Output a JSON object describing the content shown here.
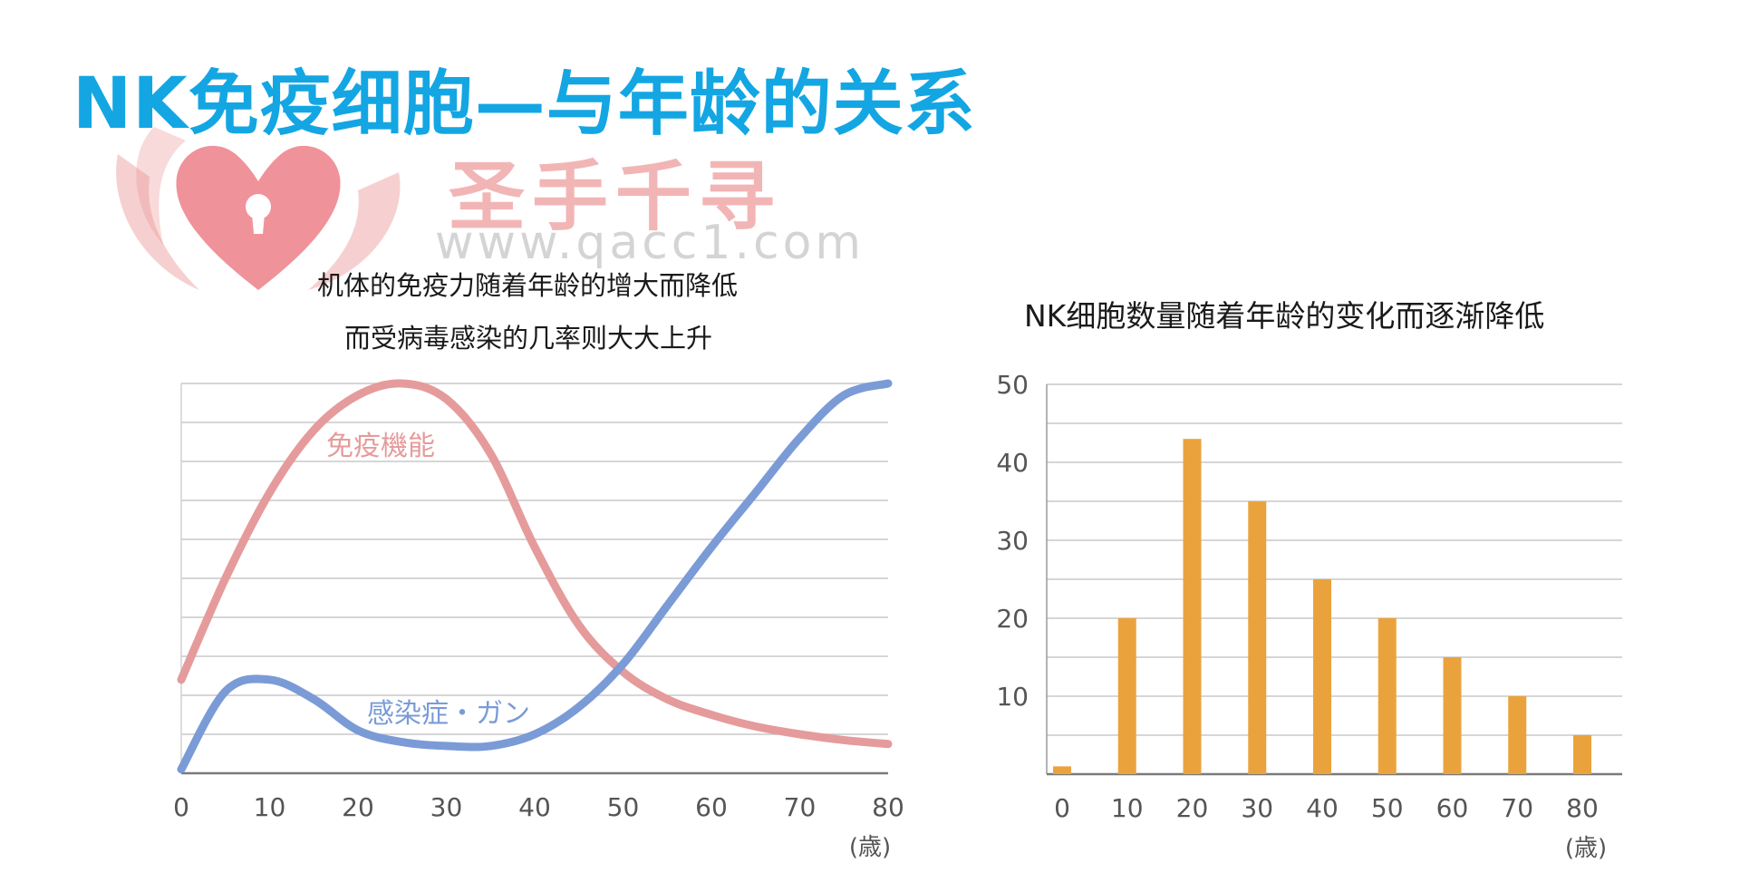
{
  "header": {
    "title": "NK免疫细胞—与年龄的关系"
  },
  "watermark": {
    "brand": "圣手千寻",
    "url": "www.qacc1.com",
    "logo_icon": "heart-lock-hands-icon"
  },
  "colors": {
    "title": "#13a6e3",
    "immune_line": "#e59b9b",
    "disease_line": "#7a9bd6",
    "bars": "#eaa33c"
  },
  "chart_data": [
    {
      "type": "line",
      "subtitle_lines": [
        "机体的免疫力随着年龄的增大而降低",
        "而受病毒感染的几率则大大上升"
      ],
      "xlabel": "",
      "unit_label": "(歳)",
      "x_ticks": [
        0,
        10,
        20,
        30,
        40,
        50,
        60,
        70,
        80
      ],
      "xlim": [
        0,
        80
      ],
      "ylim": [
        0,
        100
      ],
      "y_gridlines": [
        10,
        20,
        30,
        40,
        50,
        60,
        70,
        80,
        90,
        100
      ],
      "grid": true,
      "series": [
        {
          "name": "免疫機能",
          "x": [
            0,
            5,
            10,
            15,
            20,
            25,
            30,
            35,
            40,
            45,
            50,
            55,
            60,
            65,
            70,
            75,
            80
          ],
          "y": [
            24,
            50,
            72,
            88,
            97,
            100,
            96,
            82,
            58,
            38,
            26,
            19,
            15,
            12,
            10,
            8.5,
            7.5
          ]
        },
        {
          "name": "感染症・ガン",
          "x": [
            0,
            5,
            10,
            15,
            20,
            25,
            30,
            35,
            40,
            45,
            50,
            55,
            60,
            65,
            70,
            75,
            80
          ],
          "y": [
            1,
            21,
            24,
            19,
            11,
            8,
            7,
            7,
            10,
            17,
            28,
            43,
            58,
            72,
            86,
            97,
            100
          ]
        }
      ]
    },
    {
      "type": "bar",
      "title": "NK细胞数量随着年龄的变化而逐渐降低",
      "categories": [
        "0",
        "10",
        "20",
        "30",
        "40",
        "50",
        "60",
        "70",
        "80"
      ],
      "values": [
        1,
        20,
        43,
        35,
        25,
        20,
        15,
        10,
        5
      ],
      "ylim": [
        0,
        50
      ],
      "y_ticks": [
        10,
        20,
        30,
        40,
        50
      ],
      "y_gridlines": [
        5,
        10,
        15,
        20,
        25,
        30,
        35,
        40,
        45,
        50
      ],
      "unit_label": "(歳)",
      "grid": true
    }
  ]
}
